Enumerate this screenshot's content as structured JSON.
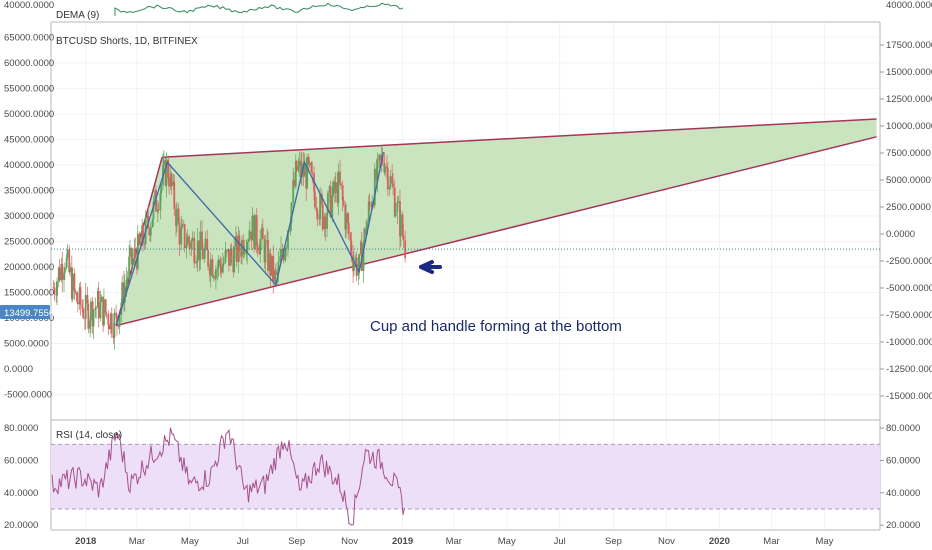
{
  "panels": {
    "dema": {
      "label": "DEMA (9)",
      "tick_label": "40000.0000",
      "right_tick_label": "40000.0000"
    },
    "main": {
      "title": "BTCUSD Shorts, 1D, BITFINEX",
      "price_badge": "13499.7556"
    },
    "rsi": {
      "label": "RSI (14, close)"
    }
  },
  "annotation": {
    "text": "Cup and handle forming at the bottom"
  },
  "colors": {
    "wedge_fill": "#c6e3bb",
    "wedge_border": "#a8335a",
    "zigzag": "#3a67a8",
    "candle_up": "#5aa35a",
    "candle_down": "#d9605e",
    "rsi_line": "#a5518d",
    "rsi_band": "#eedff8",
    "dema_line": "#2f8a5a",
    "arrow": "#1a2a80",
    "price_badge": "#4a86c5"
  },
  "chart_data": [
    {
      "type": "line",
      "panel": "main",
      "title": "BTCUSD Shorts, 1D, BITFINEX",
      "left_axis": {
        "ticks": [
          65000,
          60000,
          55000,
          50000,
          45000,
          40000,
          35000,
          30000,
          25000,
          20000,
          15000,
          10000,
          5000,
          0,
          -5000
        ],
        "ylim": [
          -10000,
          68000
        ]
      },
      "right_axis": {
        "ticks": [
          17500,
          15000,
          12500,
          10000,
          7500,
          5000,
          2500,
          0,
          -2500,
          -5000,
          -7500,
          -10000,
          -12500,
          -15000
        ]
      },
      "x_ticks": [
        "2018",
        "Mar",
        "May",
        "Jul",
        "Sep",
        "Nov",
        "2019",
        "Mar",
        "May",
        "Jul",
        "Sep",
        "Nov",
        "2020",
        "Mar",
        "May"
      ],
      "wedge": {
        "upper": [
          {
            "x": "2018-03-30",
            "y": 41500
          },
          {
            "x": "2020-06-30",
            "y": 49000
          }
        ],
        "lower": [
          {
            "x": "2018-02-05",
            "y": 8500
          },
          {
            "x": "2020-06-30",
            "y": 45500
          }
        ]
      },
      "zigzag": [
        {
          "x": "2018-02-05",
          "y": 8500
        },
        {
          "x": "2018-04-05",
          "y": 40500
        },
        {
          "x": "2018-08-08",
          "y": 16500
        },
        {
          "x": "2018-09-10",
          "y": 40500
        },
        {
          "x": "2018-11-12",
          "y": 19000
        },
        {
          "x": "2018-12-10",
          "y": 42500
        }
      ],
      "current_price_line": 23500,
      "price_badge": 13499.7556
    },
    {
      "type": "line",
      "panel": "rsi",
      "name": "RSI (14, close)",
      "axis_ticks": [
        80,
        60,
        40,
        20
      ],
      "ylim": [
        17,
        85
      ],
      "bands": [
        30,
        70
      ]
    }
  ]
}
